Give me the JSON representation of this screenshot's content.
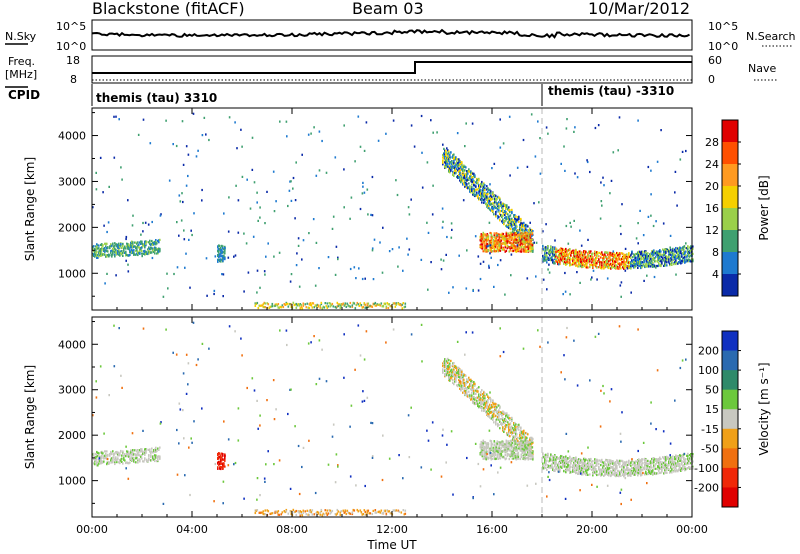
{
  "header": {
    "station": "Blackstone (fitACF)",
    "beam": "Beam 03",
    "date": "10/Mar/2012"
  },
  "top_labels": {
    "nsky": "N.Sky",
    "nsearch": "N.Search",
    "freq": "Freq.",
    "mhz": "[MHz]",
    "cpid": "CPID",
    "nave": "Nave",
    "noise_hi": "10^5",
    "noise_lo": "10^0",
    "freq_hi": "18",
    "freq_lo": "8",
    "nave_hi": "60",
    "nave_lo": "0",
    "cpid_1": "themis (tau) 3310",
    "cpid_2": "themis (tau) -3310"
  },
  "chart_data": [
    {
      "type": "heatmap",
      "name": "power-panel",
      "ylabel": "Slant Range [km]",
      "y_ticks": [
        1000,
        2000,
        3000,
        4000
      ],
      "ylim": [
        200,
        4600
      ],
      "x_ticks": [
        "00:00",
        "04:00",
        "08:00",
        "12:00",
        "16:00",
        "20:00",
        "00:00"
      ],
      "xlim_hours": [
        0,
        24
      ],
      "colorbar": {
        "label": "Power [dB]",
        "ticks": [
          "28",
          "24",
          "20",
          "16",
          "12",
          "8",
          "4"
        ],
        "colors": [
          "#e00000",
          "#ff5000",
          "#ff9a20",
          "#f5d000",
          "#9ad04a",
          "#3fa070",
          "#1e7ad0",
          "#0a2aa8"
        ]
      }
    },
    {
      "type": "heatmap",
      "name": "velocity-panel",
      "ylabel": "Slant Range [km]",
      "y_ticks": [
        1000,
        2000,
        3000,
        4000
      ],
      "ylim": [
        200,
        4600
      ],
      "x_ticks": [
        "00:00",
        "04:00",
        "08:00",
        "12:00",
        "16:00",
        "20:00",
        "00:00"
      ],
      "xlabel": "Time UT",
      "xlim_hours": [
        0,
        24
      ],
      "colorbar": {
        "label": "Velocity [m s⁻¹]",
        "ticks": [
          "200",
          "100",
          "50",
          "15",
          "-15",
          "-50",
          "-100",
          "-200"
        ],
        "colors": [
          "#1030c0",
          "#2a6ab0",
          "#2f8a6a",
          "#6cc83c",
          "#c8c8c0",
          "#f0a018",
          "#f07010",
          "#f02808",
          "#e00000"
        ]
      }
    }
  ],
  "colors": {
    "axis": "#000000",
    "dashed_line": "#b8b8b8"
  }
}
